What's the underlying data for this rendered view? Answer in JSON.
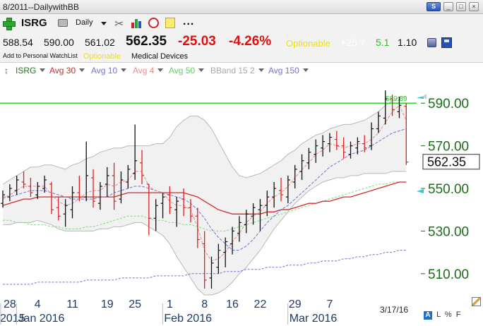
{
  "window": {
    "title": "8/2011--DailywithBB",
    "s_button": "S"
  },
  "toolbar": {
    "symbol": "ISRG",
    "period": "Daily",
    "more": "..."
  },
  "quote": {
    "open": "588.54",
    "high": "590.00",
    "low": "561.02",
    "last": "562.35",
    "change": "-25.03",
    "change_pct": "-4.26%",
    "optionable": "Optionable",
    "stat1": "+25.7",
    "stat2": "5.1",
    "stat3": "1.10"
  },
  "sub": {
    "watchlist": "Add to Personal WatchList",
    "optionable": "Optionable",
    "industry": "Medical Devices"
  },
  "indicators": [
    {
      "label": "ISRG",
      "color": "#1f7a1f"
    },
    {
      "label": "Avg 30",
      "color": "#d42a2a"
    },
    {
      "label": "Avg 10",
      "color": "#7373d6"
    },
    {
      "label": "Avg 4",
      "color": "#ee8a8a"
    },
    {
      "label": "Avg 50",
      "color": "#5fd35f"
    },
    {
      "label": "BBand 15 2",
      "color": "#a8a8a8"
    },
    {
      "label": "Avg 150",
      "color": "#7373d6"
    }
  ],
  "chart_data": {
    "type": "bar",
    "symbol": "ISRG",
    "price_label": "562.35",
    "level_line": {
      "value": 590.0,
      "label": "589.89",
      "color": "#36d236"
    },
    "ylim": [
      502,
      602
    ],
    "y_ticks": [
      510,
      530,
      550,
      570,
      590
    ],
    "y_tick_labels": [
      "510.00",
      "530.00",
      "550.00",
      "570.00",
      "590.00"
    ],
    "x_tick_labels": [
      {
        "label": "28",
        "bar": 1
      },
      {
        "label": "4",
        "bar": 5
      },
      {
        "label": "11",
        "bar": 10
      },
      {
        "label": "19",
        "bar": 15
      },
      {
        "label": "25",
        "bar": 19
      },
      {
        "label": "1",
        "bar": 24
      },
      {
        "label": "8",
        "bar": 29
      },
      {
        "label": "16",
        "bar": 33
      },
      {
        "label": "22",
        "bar": 37
      },
      {
        "label": "29",
        "bar": 42
      },
      {
        "label": "7",
        "bar": 47
      }
    ],
    "month_labels": [
      {
        "label": "2015",
        "bar": 0
      },
      {
        "label": "Jan 2016",
        "bar": 3
      },
      {
        "label": "Feb 2016",
        "bar": 24
      },
      {
        "label": "Mar 2016",
        "bar": 42
      }
    ],
    "date_stamp": "3/17/16",
    "ohlc": [
      {
        "o": 543,
        "h": 549,
        "l": 541,
        "c": 547
      },
      {
        "o": 546,
        "h": 552,
        "l": 544,
        "c": 550
      },
      {
        "o": 549,
        "h": 556,
        "l": 547,
        "c": 554
      },
      {
        "o": 553,
        "h": 558,
        "l": 550,
        "c": 552
      },
      {
        "o": 551,
        "h": 555,
        "l": 546,
        "c": 548
      },
      {
        "o": 547,
        "h": 553,
        "l": 545,
        "c": 551
      },
      {
        "o": 550,
        "h": 556,
        "l": 548,
        "c": 554
      },
      {
        "o": 552,
        "h": 553,
        "l": 538,
        "c": 540
      },
      {
        "o": 541,
        "h": 546,
        "l": 535,
        "c": 537
      },
      {
        "o": 538,
        "h": 545,
        "l": 532,
        "c": 542
      },
      {
        "o": 540,
        "h": 551,
        "l": 536,
        "c": 548
      },
      {
        "o": 548,
        "h": 556,
        "l": 544,
        "c": 546
      },
      {
        "o": 546,
        "h": 572,
        "l": 544,
        "c": 556
      },
      {
        "o": 555,
        "h": 559,
        "l": 541,
        "c": 544
      },
      {
        "o": 543,
        "h": 553,
        "l": 540,
        "c": 551
      },
      {
        "o": 552,
        "h": 560,
        "l": 546,
        "c": 556
      },
      {
        "o": 556,
        "h": 562,
        "l": 540,
        "c": 544
      },
      {
        "o": 545,
        "h": 558,
        "l": 543,
        "c": 554
      },
      {
        "o": 553,
        "h": 561,
        "l": 550,
        "c": 559
      },
      {
        "o": 557,
        "h": 580,
        "l": 554,
        "c": 563
      },
      {
        "o": 562,
        "h": 568,
        "l": 552,
        "c": 556
      },
      {
        "o": 552,
        "h": 552,
        "l": 528,
        "c": 536
      },
      {
        "o": 536,
        "h": 545,
        "l": 530,
        "c": 542
      },
      {
        "o": 543,
        "h": 548,
        "l": 536,
        "c": 546
      },
      {
        "o": 547,
        "h": 551,
        "l": 538,
        "c": 541
      },
      {
        "o": 540,
        "h": 546,
        "l": 532,
        "c": 544
      },
      {
        "o": 545,
        "h": 550,
        "l": 537,
        "c": 541
      },
      {
        "o": 541,
        "h": 545,
        "l": 534,
        "c": 537
      },
      {
        "o": 537,
        "h": 541,
        "l": 522,
        "c": 526
      },
      {
        "o": 524,
        "h": 530,
        "l": 503,
        "c": 507
      },
      {
        "o": 508,
        "h": 518,
        "l": 503,
        "c": 515
      },
      {
        "o": 513,
        "h": 524,
        "l": 510,
        "c": 521
      },
      {
        "o": 520,
        "h": 527,
        "l": 513,
        "c": 525
      },
      {
        "o": 524,
        "h": 532,
        "l": 519,
        "c": 530
      },
      {
        "o": 529,
        "h": 537,
        "l": 525,
        "c": 534
      },
      {
        "o": 533,
        "h": 540,
        "l": 529,
        "c": 538
      },
      {
        "o": 537,
        "h": 543,
        "l": 533,
        "c": 541
      },
      {
        "o": 540,
        "h": 545,
        "l": 530,
        "c": 542
      },
      {
        "o": 542,
        "h": 549,
        "l": 537,
        "c": 546
      },
      {
        "o": 546,
        "h": 553,
        "l": 541,
        "c": 550
      },
      {
        "o": 549,
        "h": 555,
        "l": 544,
        "c": 547
      },
      {
        "o": 546,
        "h": 556,
        "l": 543,
        "c": 554
      },
      {
        "o": 553,
        "h": 561,
        "l": 550,
        "c": 559
      },
      {
        "o": 558,
        "h": 566,
        "l": 554,
        "c": 563
      },
      {
        "o": 562,
        "h": 569,
        "l": 559,
        "c": 567
      },
      {
        "o": 566,
        "h": 573,
        "l": 562,
        "c": 570
      },
      {
        "o": 569,
        "h": 575,
        "l": 565,
        "c": 572
      },
      {
        "o": 571,
        "h": 576,
        "l": 567,
        "c": 574
      },
      {
        "o": 573,
        "h": 577,
        "l": 568,
        "c": 570
      },
      {
        "o": 570,
        "h": 574,
        "l": 564,
        "c": 567
      },
      {
        "o": 566,
        "h": 572,
        "l": 564,
        "c": 570
      },
      {
        "o": 569,
        "h": 574,
        "l": 566,
        "c": 572
      },
      {
        "o": 571,
        "h": 575,
        "l": 567,
        "c": 569
      },
      {
        "o": 570,
        "h": 581,
        "l": 568,
        "c": 578
      },
      {
        "o": 578,
        "h": 586,
        "l": 576,
        "c": 584
      },
      {
        "o": 583,
        "h": 596,
        "l": 580,
        "c": 592
      },
      {
        "o": 592,
        "h": 594,
        "l": 584,
        "c": 587
      },
      {
        "o": 586,
        "h": 593,
        "l": 583,
        "c": 589
      },
      {
        "o": 588.54,
        "h": 590,
        "l": 561.02,
        "c": 562.35
      }
    ],
    "series": [
      {
        "key": "avg30",
        "values": [
          542,
          543,
          544,
          545,
          545,
          546,
          546,
          546,
          546,
          546,
          546,
          546,
          546,
          546,
          546,
          546,
          546,
          547,
          548,
          548,
          548,
          548,
          548,
          548,
          548,
          548,
          548,
          547,
          546,
          544,
          542,
          540,
          539,
          538,
          538,
          538,
          538,
          538,
          539,
          539,
          540,
          540,
          541,
          542,
          543,
          543,
          544,
          544,
          545,
          546,
          546,
          547,
          548,
          549,
          550,
          551,
          552,
          553,
          553
        ]
      },
      {
        "key": "avg10",
        "values": [
          546,
          546,
          547,
          548,
          549,
          549,
          549,
          548,
          547,
          546,
          545,
          545,
          545,
          545,
          546,
          546,
          548,
          549,
          550,
          551,
          551,
          550,
          549,
          548,
          547,
          546,
          545,
          543,
          540,
          536,
          531,
          527,
          524,
          521,
          521,
          523,
          526,
          530,
          534,
          537,
          540,
          542,
          545,
          548,
          551,
          554,
          557,
          560,
          562,
          564,
          566,
          567,
          568,
          570,
          572,
          574,
          576,
          577,
          578
        ]
      },
      {
        "key": "avg4",
        "values": [
          545,
          547,
          549,
          551,
          551,
          551,
          551,
          547,
          544,
          542,
          543,
          545,
          548,
          549,
          549,
          552,
          551,
          553,
          554,
          558,
          558,
          551,
          549,
          548,
          544,
          542,
          542,
          540,
          532,
          521,
          516,
          517,
          520,
          525,
          529,
          534,
          537,
          539,
          543,
          546,
          548,
          551,
          555,
          559,
          562,
          566,
          568,
          571,
          570,
          569,
          570,
          571,
          571,
          573,
          576,
          581,
          586,
          589,
          582
        ]
      },
      {
        "key": "avg50",
        "values": [
          535,
          535,
          534,
          534,
          533,
          533,
          533,
          532,
          532,
          531,
          531,
          531,
          532,
          532,
          533,
          534,
          535,
          536,
          537,
          537,
          537,
          536,
          535,
          535,
          534,
          534,
          533,
          533,
          532,
          531,
          530,
          530,
          530,
          531,
          532,
          533,
          534,
          535,
          536,
          537,
          538,
          539,
          540,
          541,
          542,
          543,
          544,
          545,
          546,
          547,
          548,
          549,
          550,
          551,
          552,
          552,
          553,
          553,
          553
        ]
      },
      {
        "key": "avg150",
        "values": [
          505,
          505,
          505,
          505,
          505,
          506,
          506,
          506,
          506,
          506,
          506,
          506,
          507,
          507,
          507,
          507,
          507,
          508,
          508,
          508,
          508,
          508,
          509,
          509,
          509,
          509,
          509,
          510,
          510,
          510,
          510,
          510,
          511,
          511,
          511,
          512,
          512,
          512,
          513,
          513,
          513,
          514,
          514,
          514,
          515,
          515,
          516,
          516,
          516,
          517,
          517,
          518,
          518,
          519,
          519,
          520,
          520,
          521,
          521
        ]
      },
      {
        "key": "bb_upper",
        "values": [
          552,
          554,
          556,
          558,
          560,
          560,
          561,
          561,
          560,
          559,
          561,
          562,
          564,
          565,
          567,
          568,
          569,
          569,
          570,
          570,
          570,
          570,
          571,
          571,
          574,
          579,
          582,
          584,
          584,
          582,
          578,
          572,
          566,
          560,
          556,
          555,
          556,
          557,
          559,
          561,
          563,
          566,
          568,
          571,
          573,
          575,
          576,
          578,
          579,
          580,
          580,
          581,
          582,
          584,
          586,
          589,
          591,
          593,
          593
        ]
      },
      {
        "key": "bb_lower",
        "values": [
          533,
          533,
          534,
          534,
          534,
          535,
          534,
          533,
          531,
          530,
          530,
          530,
          530,
          530,
          531,
          531,
          532,
          532,
          533,
          534,
          534,
          532,
          530,
          528,
          524,
          518,
          513,
          508,
          503,
          500,
          500,
          501,
          503,
          506,
          510,
          513,
          517,
          521,
          526,
          531,
          535,
          539,
          543,
          546,
          549,
          551,
          553,
          554,
          555,
          555,
          556,
          556,
          557,
          557,
          557,
          557,
          558,
          558,
          558
        ]
      }
    ]
  }
}
